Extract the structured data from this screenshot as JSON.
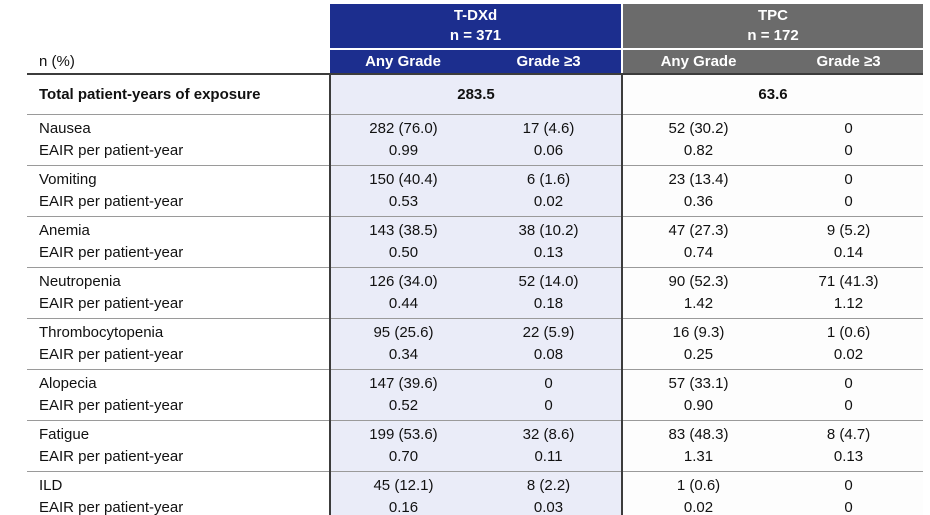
{
  "colors": {
    "tdxd_header_bg": "#1c2e8e",
    "tpc_header_bg": "#6b6b6b",
    "tdxd_body_bg": "#eaecf8",
    "tpc_body_bg": "#fdfdfd",
    "header_text": "#ffffff",
    "border_dark": "#3c3c3c",
    "border_light": "#9a9a9a"
  },
  "table": {
    "corner_label": "n (%)",
    "groups": [
      {
        "name": "T-DXd",
        "n_label": "n = 371"
      },
      {
        "name": "TPC",
        "n_label": "n = 172"
      }
    ],
    "subheaders": [
      "Any Grade",
      "Grade ≥3",
      "Any Grade",
      "Grade ≥3"
    ],
    "exposure_row": {
      "label": "Total patient-years of exposure",
      "tdxd_value": "283.5",
      "tpc_value": "63.6"
    },
    "eair_label": "EAIR per patient-year",
    "rows": [
      {
        "label": "Nausea",
        "values": [
          "282 (76.0)",
          "17 (4.6)",
          "52 (30.2)",
          "0"
        ],
        "eair": [
          "0.99",
          "0.06",
          "0.82",
          "0"
        ]
      },
      {
        "label": "Vomiting",
        "values": [
          "150 (40.4)",
          "6 (1.6)",
          "23 (13.4)",
          "0"
        ],
        "eair": [
          "0.53",
          "0.02",
          "0.36",
          "0"
        ]
      },
      {
        "label": "Anemia",
        "values": [
          "143 (38.5)",
          "38 (10.2)",
          "47 (27.3)",
          "9 (5.2)"
        ],
        "eair": [
          "0.50",
          "0.13",
          "0.74",
          "0.14"
        ]
      },
      {
        "label": "Neutropenia",
        "values": [
          "126 (34.0)",
          "52 (14.0)",
          "90 (52.3)",
          "71 (41.3)"
        ],
        "eair": [
          "0.44",
          "0.18",
          "1.42",
          "1.12"
        ]
      },
      {
        "label": "Thrombocytopenia",
        "values": [
          "95 (25.6)",
          "22 (5.9)",
          "16 (9.3)",
          "1 (0.6)"
        ],
        "eair": [
          "0.34",
          "0.08",
          "0.25",
          "0.02"
        ]
      },
      {
        "label": "Alopecia",
        "values": [
          "147 (39.6)",
          "0",
          "57 (33.1)",
          "0"
        ],
        "eair": [
          "0.52",
          "0",
          "0.90",
          "0"
        ]
      },
      {
        "label": "Fatigue",
        "values": [
          "199 (53.6)",
          "32 (8.6)",
          "83 (48.3)",
          "8 (4.7)"
        ],
        "eair": [
          "0.70",
          "0.11",
          "1.31",
          "0.13"
        ]
      },
      {
        "label": "ILD",
        "values": [
          "45 (12.1)",
          "8 (2.2)",
          "1 (0.6)",
          "0"
        ],
        "eair": [
          "0.16",
          "0.03",
          "0.02",
          "0"
        ]
      }
    ]
  }
}
